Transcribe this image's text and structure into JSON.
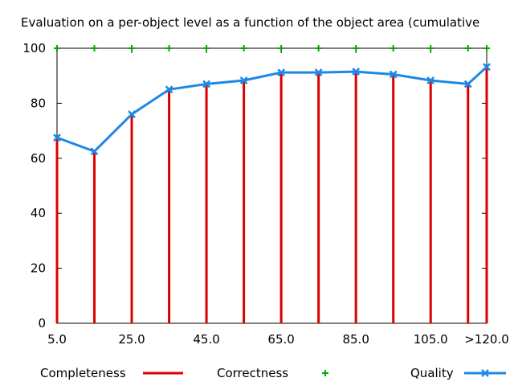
{
  "chart_data": {
    "type": "bar+line+scatter",
    "title": "Evaluation on a per-object level as a function of the object area (cumulative",
    "xlabel": "",
    "ylabel": "",
    "ylim": [
      0,
      100
    ],
    "yticks": [
      0,
      20,
      40,
      60,
      80,
      100
    ],
    "x_values": [
      5,
      15,
      25,
      35,
      45,
      55,
      65,
      75,
      85,
      95,
      105,
      115,
      120
    ],
    "xticks": [
      {
        "x": 5,
        "label": "5.0"
      },
      {
        "x": 25,
        "label": "25.0"
      },
      {
        "x": 45,
        "label": "45.0"
      },
      {
        "x": 65,
        "label": "65.0"
      },
      {
        "x": 85,
        "label": "85.0"
      },
      {
        "x": 105,
        "label": "105.0"
      },
      {
        "x": 120,
        "label": ">120.0"
      }
    ],
    "xlim": [
      5,
      120
    ],
    "series": [
      {
        "name": "Completeness",
        "style": "impulses",
        "color": "#dd0000",
        "values": [
          67.5,
          62.5,
          76,
          85,
          87,
          88.3,
          91.2,
          91.2,
          91.5,
          90.5,
          88.3,
          87,
          93.2
        ]
      },
      {
        "name": "Correctness",
        "style": "points",
        "color": "#00aa00",
        "values": [
          100,
          100,
          100,
          100,
          100,
          100,
          100,
          100,
          100,
          100,
          100,
          100,
          100
        ]
      },
      {
        "name": "Quality",
        "style": "linespoints",
        "color": "#1e88e5",
        "values": [
          67.5,
          62.5,
          76,
          85,
          87,
          88.3,
          91.2,
          91.2,
          91.5,
          90.5,
          88.3,
          87,
          93.2
        ]
      }
    ],
    "grid": false,
    "legend_position": "bottom"
  }
}
